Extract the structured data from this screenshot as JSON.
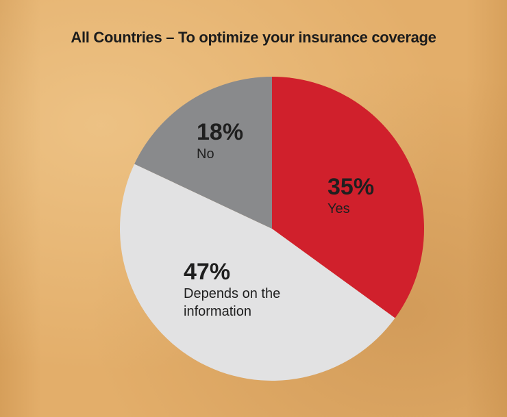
{
  "chart_data": {
    "type": "pie",
    "title": "All Countries – To optimize your insurance coverage",
    "slices": [
      {
        "label": "Yes",
        "value": 35,
        "value_label": "35%",
        "color": "#d0202c",
        "label_lines": [
          "Yes"
        ]
      },
      {
        "label": "Depends on the information",
        "value": 47,
        "value_label": "47%",
        "color": "#e2e2e3",
        "label_lines": [
          "Depends on the",
          "information"
        ]
      },
      {
        "label": "No",
        "value": 18,
        "value_label": "18%",
        "color": "#898a8c",
        "label_lines": [
          "No"
        ]
      }
    ]
  }
}
